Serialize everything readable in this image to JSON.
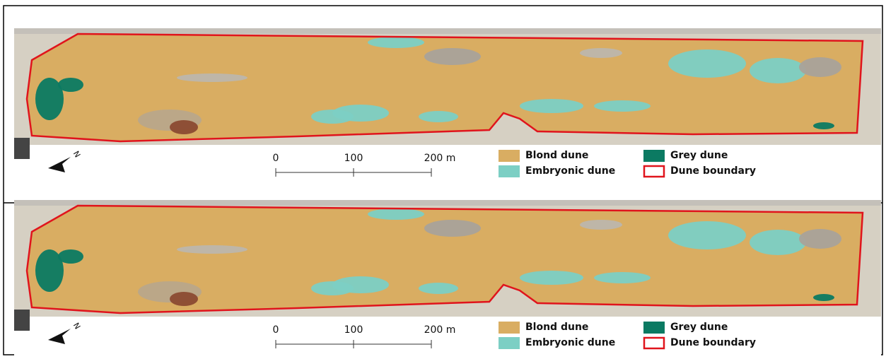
{
  "panels": [
    {
      "north_label": "N",
      "scale_bar": {
        "labels": [
          "0",
          "100",
          "200 m"
        ]
      },
      "legend": [
        "Blond dune",
        "Grey dune",
        "Embryonic dune",
        "Dune boundary"
      ]
    },
    {
      "north_label": "N",
      "scale_bar": {
        "labels": [
          "0",
          "100",
          "200 m"
        ]
      },
      "legend": [
        "Blond dune",
        "Grey dune",
        "Embryonic dune",
        "Dune boundary"
      ]
    }
  ]
}
